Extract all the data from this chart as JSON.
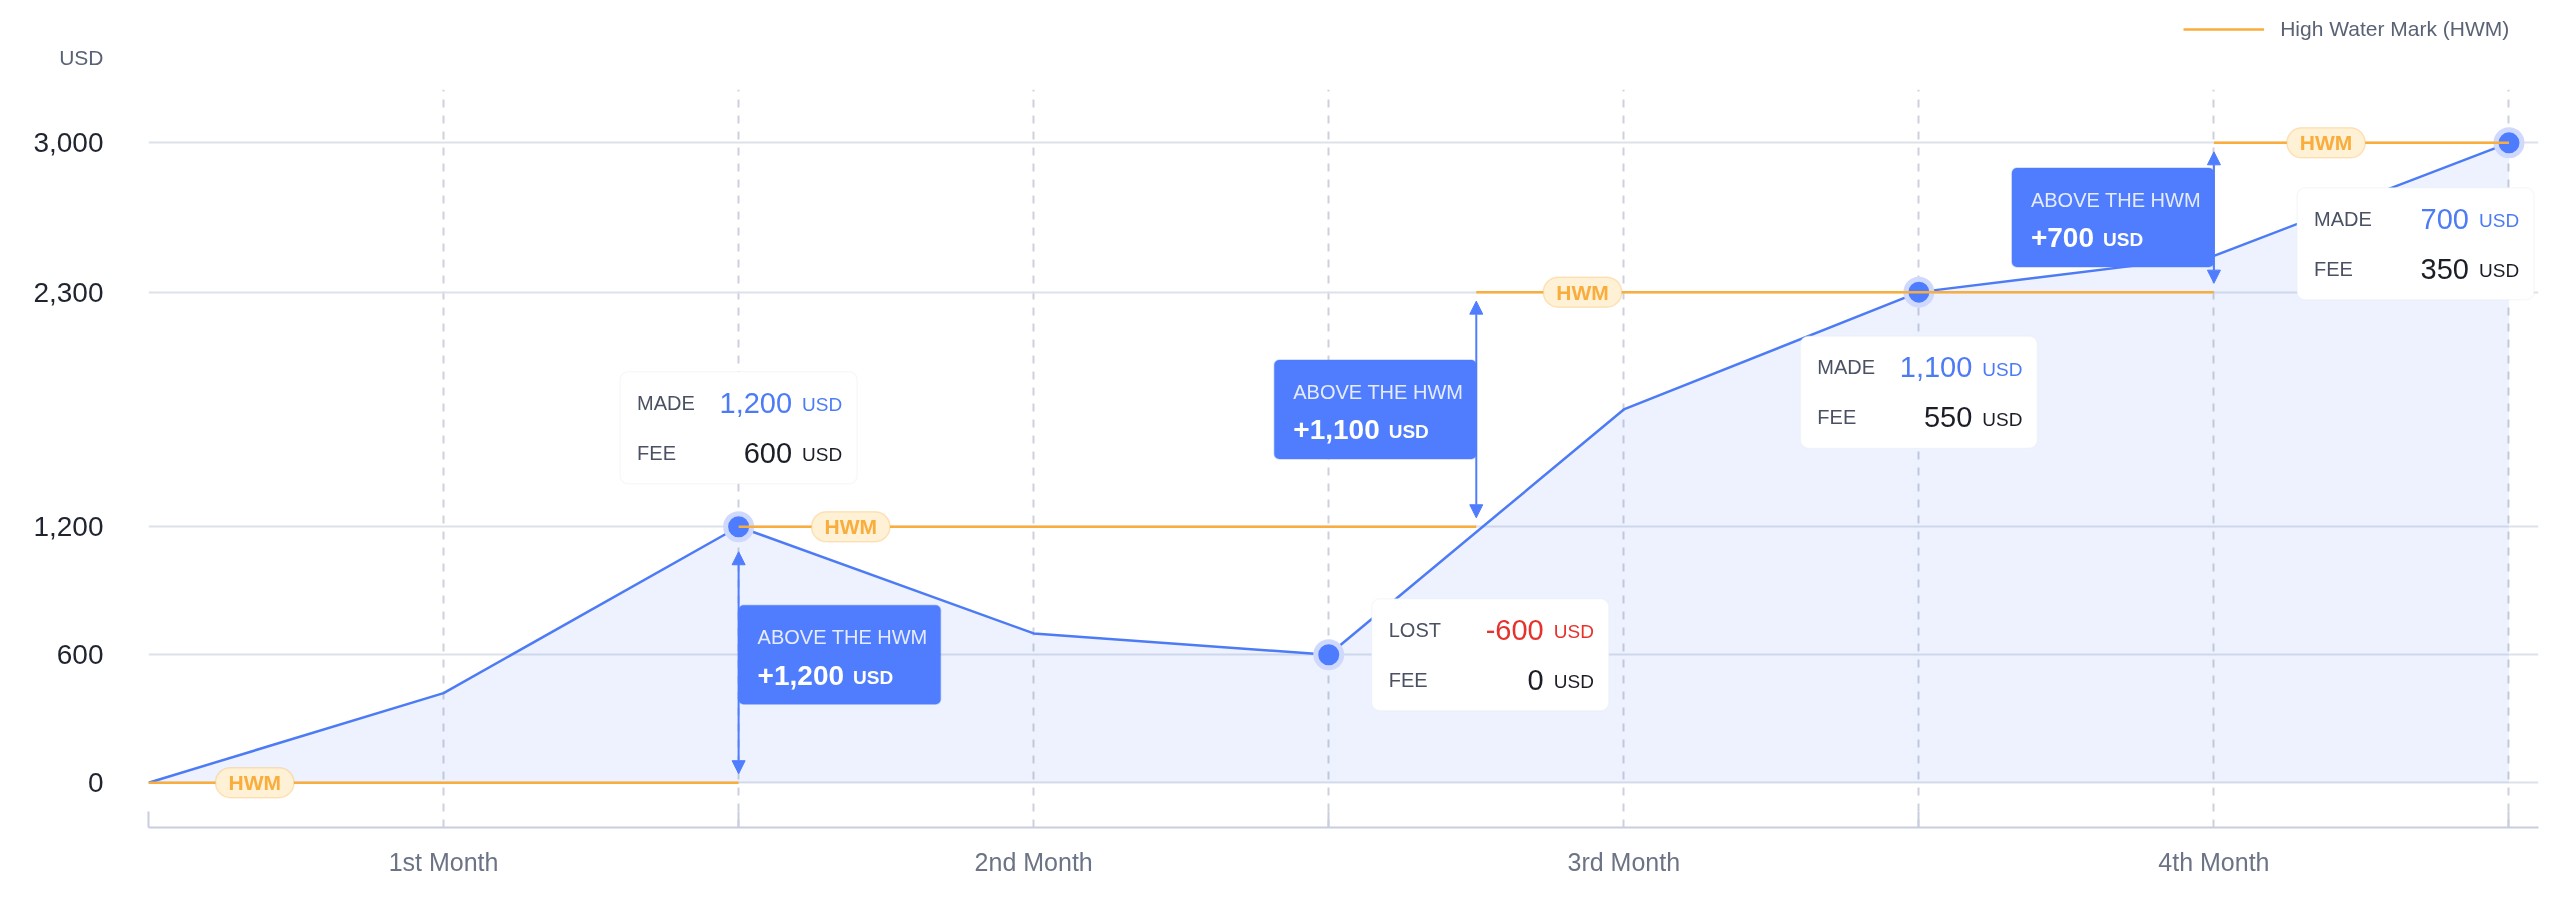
{
  "chart_data": {
    "type": "area",
    "ylabel": "USD",
    "xlim": [
      0,
      4.05
    ],
    "ylim": [
      -210,
      3250
    ],
    "xticks": [
      {
        "value": 0,
        "label": null
      },
      {
        "value": 0.5,
        "label": "1st Month"
      },
      {
        "value": 1,
        "label": null
      },
      {
        "value": 1.5,
        "label": "2nd Month"
      },
      {
        "value": 2,
        "label": null
      },
      {
        "value": 2.5,
        "label": "3rd Month"
      },
      {
        "value": 3,
        "label": null
      },
      {
        "value": 3.5,
        "label": "4th Month"
      },
      {
        "value": 4,
        "label": null
      }
    ],
    "yticks": [
      0,
      600,
      {
        "value": 1200,
        "label": "1,200"
      },
      {
        "value": 2300,
        "label": "2,300"
      },
      {
        "value": 3000,
        "label": "3,000"
      }
    ],
    "series": [
      {
        "color": "#4c7bf5",
        "x": [
          0,
          0.5,
          1,
          1.5,
          2,
          2.5,
          3,
          3.5,
          4
        ],
        "values": [
          0,
          420,
          1200,
          700,
          600,
          1750,
          2300,
          2470,
          3000
        ]
      },
      {
        "type": "scatter",
        "color": "#4d7cfe",
        "marker": "circle",
        "x": [
          1,
          2,
          3,
          4
        ],
        "values": [
          1200,
          600,
          2300,
          3000
        ]
      },
      {
        "type": "line",
        "name": "High Water Mark (HWM)",
        "color": "#f9ad3c",
        "x": [
          0,
          1
        ],
        "values": [
          0,
          0
        ]
      },
      {
        "type": "line",
        "color": "#f9ad3c",
        "x": [
          1,
          2.25
        ],
        "values": [
          1200,
          1200
        ]
      },
      {
        "type": "line",
        "color": "#f9ad3c",
        "x": [
          2.25,
          3.5
        ],
        "values": [
          2300,
          2300
        ]
      },
      {
        "type": "line",
        "color": "#f9ad3c",
        "x": [
          3.5,
          4
        ],
        "values": [
          3000,
          3000
        ]
      }
    ],
    "grid": true,
    "legend": "top right",
    "annotations": [
      {
        "text": "HWM",
        "x": 0.18,
        "y": 0
      },
      {
        "text": "HWM",
        "x": 1.19,
        "y": 1200
      },
      {
        "text": "HWM",
        "x": 2.43,
        "y": 2300
      },
      {
        "text": "HWM",
        "x": 3.69,
        "y": 3000
      },
      "ABOVE THE HWM\n+1,200 USD",
      "ABOVE THE HWM\n+1,100 USD",
      "ABOVE THE HWM\n+700 USD",
      "MADE 1,200 USD\nFEE 600 USD",
      "LOST -600 USD\nFEE 0 USD",
      "MADE 1,100 USD\nFEE 550 USD",
      "MADE 700 USD\nFEE 350 USD"
    ]
  }
}
